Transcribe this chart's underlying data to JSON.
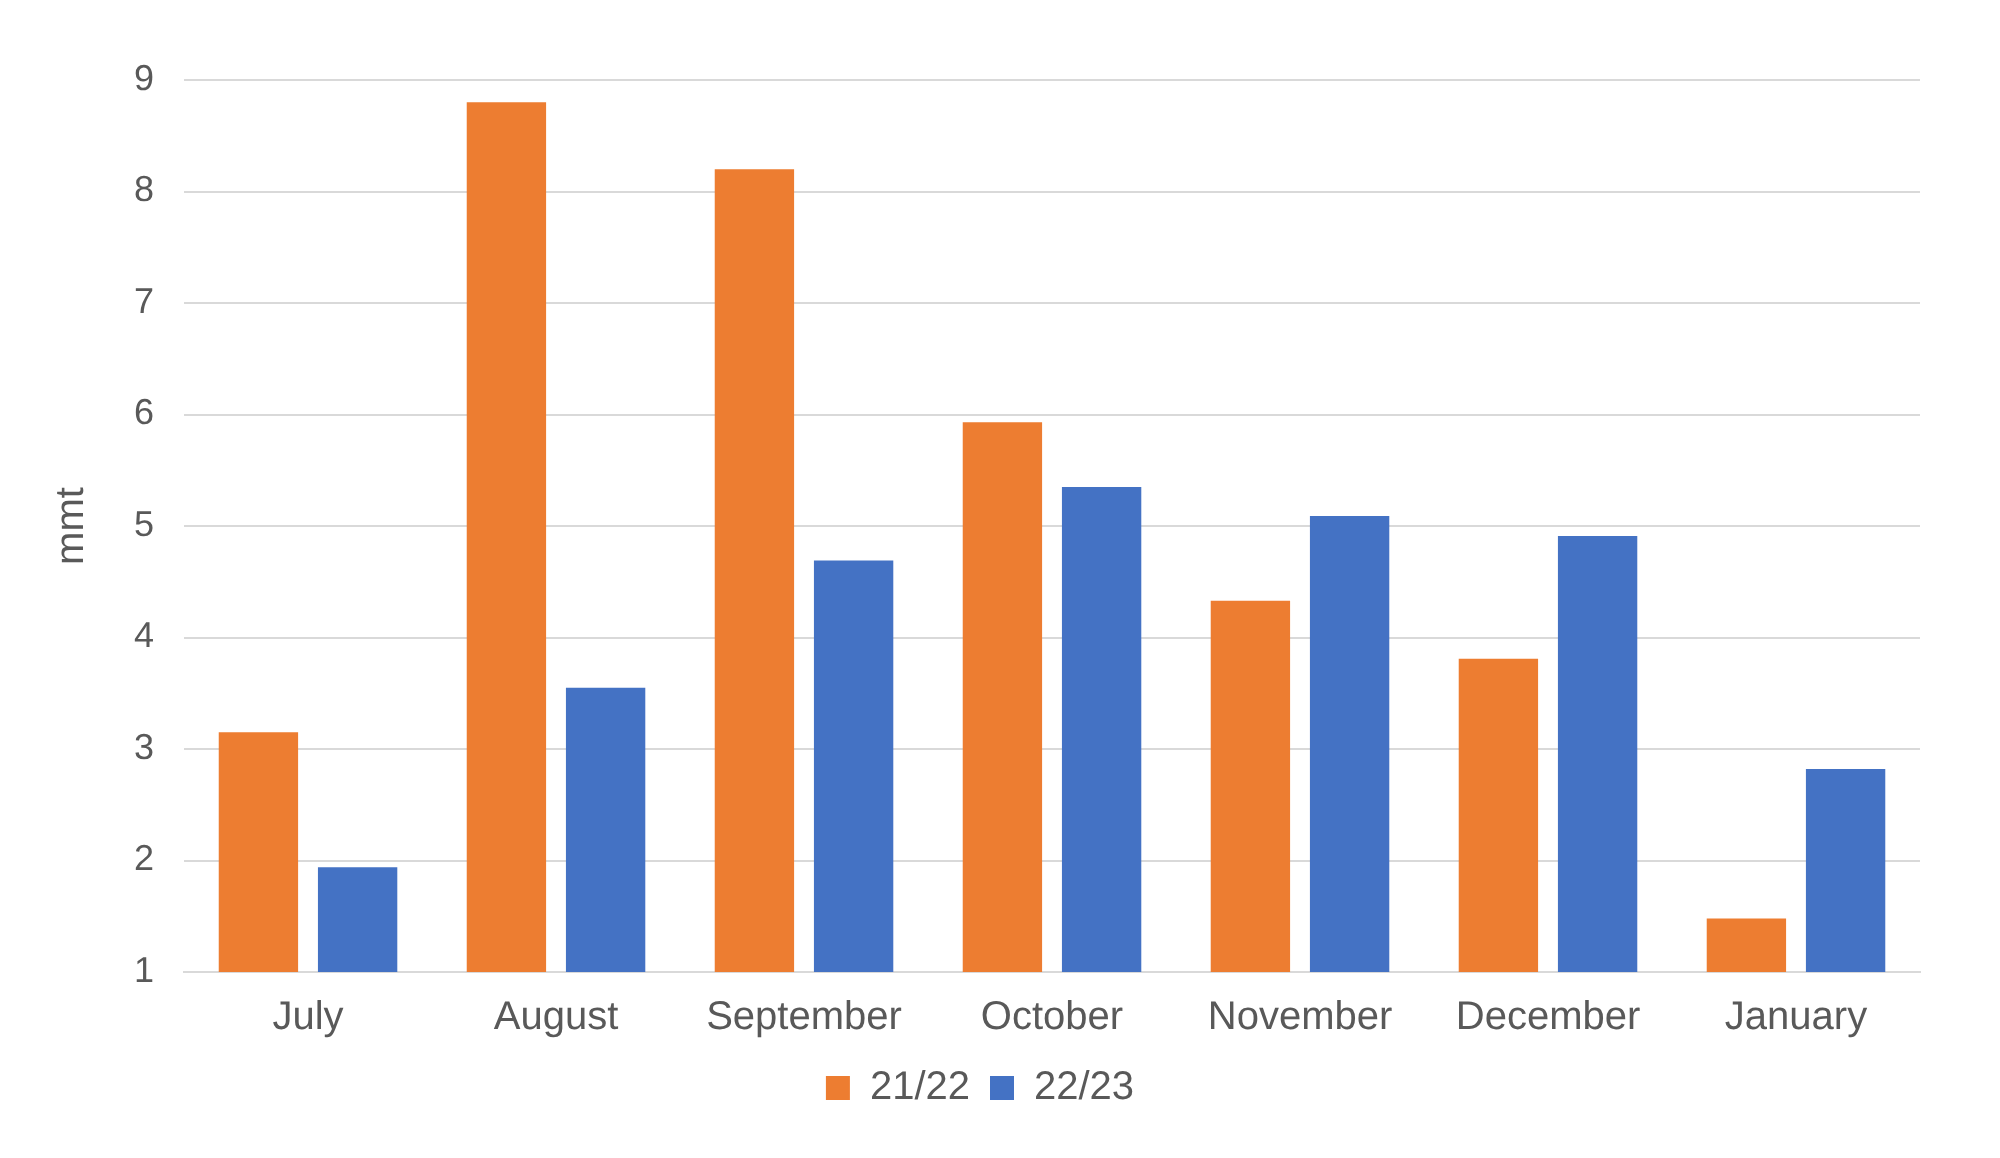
{
  "chart_data": {
    "type": "bar",
    "ylabel": "mmt",
    "categories": [
      "July",
      "August",
      "September",
      "October",
      "November",
      "December",
      "January"
    ],
    "series": [
      {
        "name": "21/22",
        "color": "#ed7d31",
        "values": [
          3.15,
          8.8,
          8.2,
          5.93,
          4.33,
          3.81,
          1.48
        ]
      },
      {
        "name": "22/23",
        "color": "#4472c4",
        "values": [
          1.94,
          3.55,
          4.69,
          5.35,
          5.09,
          4.91,
          2.82
        ]
      }
    ],
    "ylim": [
      1,
      9
    ],
    "yticks": [
      1,
      2,
      3,
      4,
      5,
      6,
      7,
      8,
      9
    ],
    "grid": "y",
    "legend": "bottom"
  }
}
